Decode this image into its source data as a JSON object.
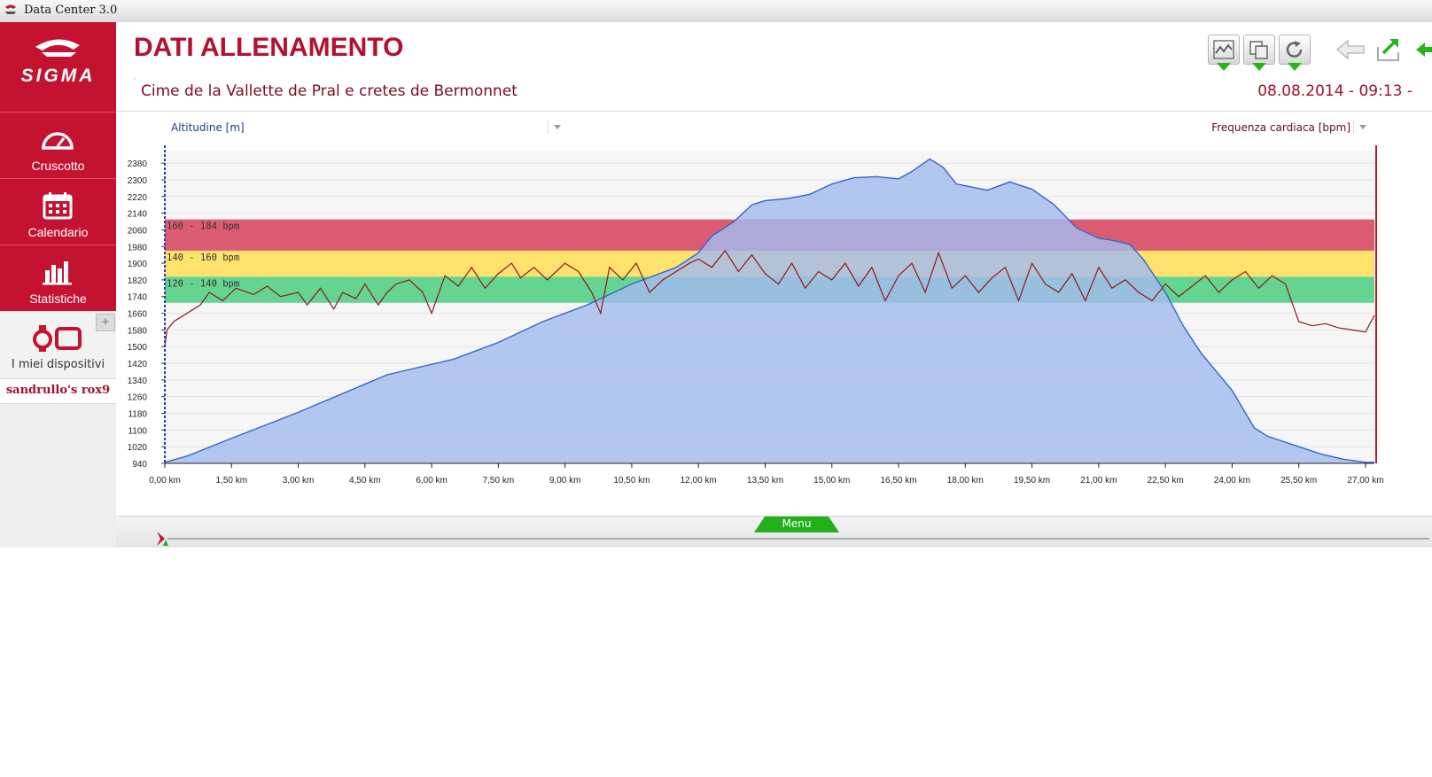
{
  "window": {
    "title": "Data Center 3.0"
  },
  "sidebar": {
    "logo": "SIGMA",
    "items": [
      {
        "label": "Cruscotto",
        "icon": "speedometer-icon"
      },
      {
        "label": "Calendario",
        "icon": "calendar-icon"
      },
      {
        "label": "Statistiche",
        "icon": "bar-chart-icon"
      }
    ],
    "devices": {
      "label": "I miei dispositivi",
      "add": "+",
      "icon": "watch-device-icon"
    },
    "device_name": "sandrullo's rox9"
  },
  "header": {
    "title": "DATI ALLENAMENTO",
    "subtitle": "Cime de la Vallette de Pral e cretes de Bermonnet",
    "datetime": "08.08.2014 - 09:13 -",
    "toolbar": [
      "chart-view-icon",
      "copy-icon",
      "refresh-icon"
    ],
    "nav": [
      "back-arrow-icon",
      "export-icon"
    ]
  },
  "chart_header": {
    "left_axis": "Altitudine [m]",
    "right_axis": "Frequenza cardiaca [bpm]"
  },
  "bottom": {
    "menu_label": "Menu"
  },
  "colors": {
    "brand_red": "#c41331",
    "altitude_fill": "#a4bbee",
    "altitude_line": "#3366cc",
    "hr_line": "#8b1a1a",
    "zone_red": "#d9536a",
    "zone_yellow": "#ffe066",
    "zone_green": "#5cd28a",
    "accent_green": "#28b41c"
  },
  "chart_data": {
    "type": "area",
    "title": "",
    "xlabel": "",
    "ylabel": "Altitudine [m]",
    "y2label": "Frequenza cardiaca [bpm]",
    "xlim": [
      0,
      27.2
    ],
    "ylim": [
      940,
      2440
    ],
    "x_ticks": [
      "0,00 km",
      "1,50 km",
      "3,00 km",
      "4,50 km",
      "6,00 km",
      "7,50 km",
      "9,00 km",
      "10,50 km",
      "12,00 km",
      "13,50 km",
      "15,00 km",
      "16,50 km",
      "18,00 km",
      "19,50 km",
      "21,00 km",
      "22,50 km",
      "24,00 km",
      "25,50 km",
      "27,00 km"
    ],
    "y_ticks": [
      940,
      1020,
      1100,
      1180,
      1260,
      1340,
      1420,
      1500,
      1580,
      1660,
      1740,
      1820,
      1900,
      1980,
      2060,
      2140,
      2220,
      2300,
      2380
    ],
    "grid": true,
    "zones": [
      {
        "label": "160 - 184 bpm",
        "from": 1960,
        "to": 2110,
        "color": "#d9536a"
      },
      {
        "label": "140 - 160 bpm",
        "from": 1835,
        "to": 1960,
        "color": "#ffe066"
      },
      {
        "label": "120 - 140 bpm",
        "from": 1710,
        "to": 1835,
        "color": "#5cd28a"
      }
    ],
    "series": [
      {
        "name": "Altitudine [m]",
        "x": [
          0,
          0.5,
          1.5,
          3,
          4.5,
          5,
          6.5,
          7.5,
          8.5,
          9.5,
          10.5,
          11.5,
          12,
          12.3,
          12.8,
          13.2,
          13.5,
          14,
          14.5,
          15,
          15.5,
          16,
          16.5,
          16.8,
          17.2,
          17.5,
          17.8,
          18.5,
          19,
          19.5,
          20,
          20.5,
          21,
          21.3,
          21.7,
          22,
          22.5,
          22.9,
          23.3,
          24,
          24.5,
          24.8,
          25.5,
          26,
          26.5,
          27,
          27.2
        ],
        "y": [
          945,
          975,
          1060,
          1185,
          1320,
          1365,
          1440,
          1520,
          1620,
          1700,
          1800,
          1880,
          1950,
          2030,
          2100,
          2180,
          2200,
          2210,
          2230,
          2280,
          2310,
          2315,
          2305,
          2340,
          2400,
          2360,
          2280,
          2250,
          2290,
          2255,
          2180,
          2070,
          2020,
          2010,
          1990,
          1920,
          1760,
          1600,
          1470,
          1290,
          1110,
          1070,
          1020,
          985,
          960,
          945,
          945
        ]
      },
      {
        "name": "Frequenza cardiaca [bpm]",
        "x": [
          0,
          0.05,
          0.2,
          0.5,
          0.8,
          1,
          1.3,
          1.6,
          2,
          2.3,
          2.6,
          3,
          3.2,
          3.5,
          3.8,
          4,
          4.3,
          4.5,
          4.8,
          5,
          5.2,
          5.5,
          5.8,
          6,
          6.3,
          6.6,
          6.9,
          7.2,
          7.5,
          7.8,
          8,
          8.3,
          8.6,
          9,
          9.3,
          9.6,
          9.8,
          10,
          10.3,
          10.6,
          10.9,
          11.2,
          11.5,
          11.8,
          12,
          12.3,
          12.6,
          12.9,
          13.2,
          13.5,
          13.8,
          14.1,
          14.4,
          14.7,
          15,
          15.3,
          15.6,
          15.9,
          16.2,
          16.5,
          16.8,
          17.1,
          17.4,
          17.7,
          18,
          18.3,
          18.6,
          18.9,
          19.2,
          19.5,
          19.8,
          20.1,
          20.4,
          20.7,
          21,
          21.3,
          21.6,
          21.9,
          22.2,
          22.5,
          22.8,
          23.1,
          23.4,
          23.7,
          24,
          24.3,
          24.6,
          24.9,
          25.2,
          25.5,
          25.8,
          26.1,
          26.4,
          26.7,
          27,
          27.2
        ],
        "y": [
          1500,
          1580,
          1620,
          1660,
          1700,
          1760,
          1720,
          1780,
          1750,
          1790,
          1740,
          1760,
          1700,
          1780,
          1680,
          1760,
          1730,
          1800,
          1700,
          1760,
          1800,
          1820,
          1760,
          1660,
          1840,
          1790,
          1880,
          1780,
          1850,
          1900,
          1830,
          1880,
          1820,
          1900,
          1860,
          1760,
          1660,
          1880,
          1820,
          1900,
          1760,
          1820,
          1860,
          1900,
          1920,
          1880,
          1960,
          1860,
          1940,
          1850,
          1800,
          1900,
          1780,
          1860,
          1820,
          1900,
          1790,
          1880,
          1720,
          1840,
          1900,
          1760,
          1950,
          1780,
          1840,
          1760,
          1830,
          1880,
          1720,
          1900,
          1800,
          1760,
          1850,
          1720,
          1880,
          1780,
          1820,
          1760,
          1720,
          1800,
          1740,
          1790,
          1840,
          1760,
          1820,
          1860,
          1780,
          1840,
          1800,
          1620,
          1600,
          1610,
          1590,
          1580,
          1570,
          1650
        ]
      }
    ]
  }
}
